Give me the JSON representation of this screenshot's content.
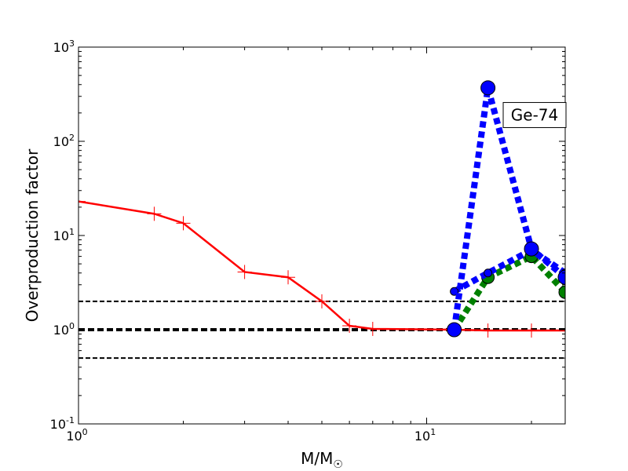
{
  "chart_data": {
    "type": "line",
    "x_scale": "log",
    "y_scale": "log",
    "xlim": [
      1,
      25
    ],
    "ylim": [
      0.1,
      1000
    ],
    "xlabel": {
      "main": "M/M",
      "sub": "☉"
    },
    "ylabel": "Overproduction factor",
    "grid": false,
    "legend": "none",
    "x_ticks": [
      {
        "value": 1,
        "base": "10",
        "exp": "0"
      },
      {
        "value": 10,
        "base": "10",
        "exp": "1"
      }
    ],
    "y_ticks": [
      {
        "value": 0.1,
        "base": "10",
        "exp": "-1"
      },
      {
        "value": 1,
        "base": "10",
        "exp": "0"
      },
      {
        "value": 10,
        "base": "10",
        "exp": "1"
      },
      {
        "value": 100,
        "base": "10",
        "exp": "2"
      },
      {
        "value": 1000,
        "base": "10",
        "exp": "3"
      }
    ],
    "annotations": [
      {
        "text": "Ge-74",
        "x": 20,
        "y": 190
      }
    ],
    "reference_lines": [
      {
        "y": 2.0,
        "style": "dashed",
        "color": "#000000",
        "width": 2
      },
      {
        "y": 1.0,
        "style": "dashed",
        "color": "#000000",
        "width": 4
      },
      {
        "y": 0.5,
        "style": "dashed",
        "color": "#000000",
        "width": 2
      }
    ],
    "series": [
      {
        "color": "#ff0000",
        "style": "solid",
        "marker": "plus",
        "x": [
          1.0,
          1.65,
          2.0,
          3.0,
          4.0,
          5.0,
          6.0,
          7.0,
          12.0,
          15.0,
          20.0,
          25.0
        ],
        "y": [
          23.0,
          17.0,
          13.5,
          4.1,
          3.6,
          2.0,
          1.1,
          1.02,
          1.0,
          0.98,
          0.98,
          0.98
        ]
      },
      {
        "color": "#0000ff",
        "style": "dotted",
        "marker": "circle-large",
        "x": [
          12.0,
          15.0,
          20.0,
          25.0
        ],
        "y": [
          1.0,
          370.0,
          7.2,
          3.6
        ]
      },
      {
        "color": "#0000ff",
        "style": "dotted",
        "marker": "circle-small",
        "x": [
          12.0,
          15.0,
          20.0,
          25.0
        ],
        "y": [
          2.55,
          4.0,
          7.0,
          4.0
        ]
      },
      {
        "color": "#008000",
        "style": "dotted",
        "marker": "circle-medium",
        "x": [
          12.0,
          15.0,
          20.0,
          25.0
        ],
        "y": [
          1.0,
          3.6,
          6.0,
          2.5
        ]
      }
    ]
  }
}
